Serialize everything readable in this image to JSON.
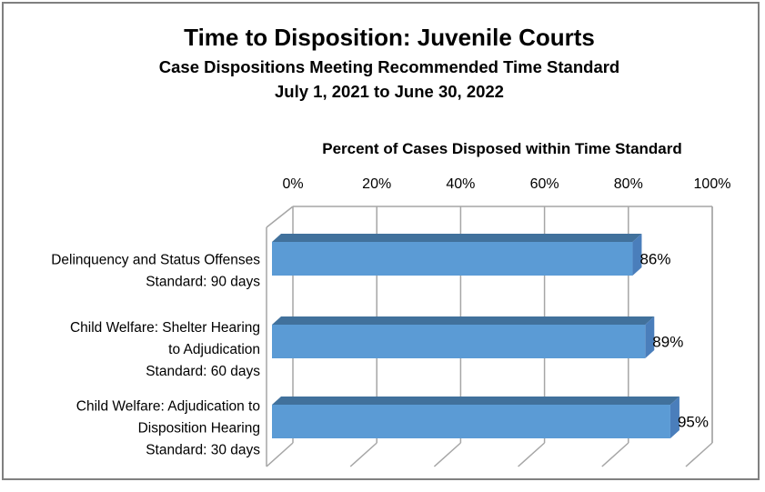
{
  "chart_data": {
    "type": "bar",
    "orientation": "horizontal",
    "style": "3d",
    "title": "Time to Disposition: Juvenile Courts",
    "subtitle": "Case Dispositions Meeting Recommended Time Standard",
    "date_range": "July 1, 2021 to June 30, 2022",
    "axis_title": "Percent of Cases Disposed within Time Standard",
    "x_ticks": [
      "0%",
      "20%",
      "40%",
      "60%",
      "80%",
      "100%"
    ],
    "xlim": [
      0,
      100
    ],
    "grid": true,
    "legend": false,
    "categories": [
      {
        "label_lines": [
          "Delinquency and Status Offenses",
          "Standard: 90 days"
        ],
        "value": 86,
        "value_label": "86%"
      },
      {
        "label_lines": [
          "Child Welfare: Shelter Hearing",
          "to Adjudication",
          "Standard: 60 days"
        ],
        "value": 89,
        "value_label": "89%"
      },
      {
        "label_lines": [
          "Child Welfare: Adjudication to",
          "Disposition Hearing",
          "Standard: 30 days"
        ],
        "value": 95,
        "value_label": "95%"
      }
    ],
    "colors": {
      "bar_front": "#5B9BD5",
      "bar_top": "#41719C",
      "bar_side": "#4A7EBB",
      "gridline": "#A6A6A6",
      "border": "#808080",
      "text": "#000000",
      "background": "#FFFFFF"
    }
  }
}
